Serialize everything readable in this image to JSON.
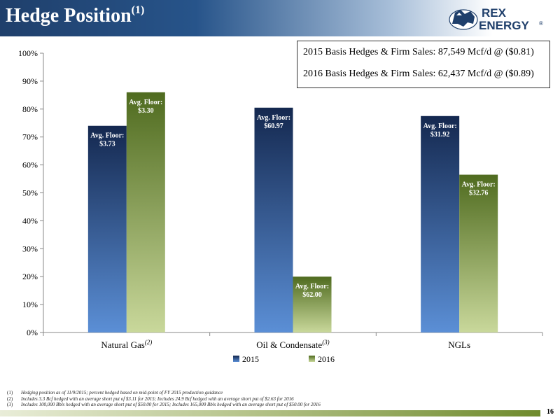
{
  "header": {
    "title": "Hedge Position",
    "title_sup": "(1)"
  },
  "logo": {
    "line1": "REX",
    "line2": "ENERGY",
    "mark": "®",
    "icon": "horse-logo-icon"
  },
  "hedge_box": [
    "2015 Basis Hedges & Firm Sales: 87,549 Mcf/d @ ($0.81)",
    "2016 Basis Hedges & Firm Sales: 62,437 Mcf/d @ ($0.89)"
  ],
  "colors": {
    "s2015_top": "#14284f",
    "s2015_bottom": "#5b8fd6",
    "s2016_top": "#4f6b1f",
    "s2016_bottom": "#c9d89b"
  },
  "chart_data": {
    "type": "bar",
    "categories": [
      "Natural Gas",
      "Oil & Condensate",
      "NGLs"
    ],
    "category_sups": [
      "(2)",
      "(3)",
      ""
    ],
    "series": [
      {
        "name": "2015",
        "values": [
          74,
          80.5,
          77.5
        ],
        "labels": [
          [
            "Avg. Floor:",
            "$3.73"
          ],
          [
            "Avg. Floor:",
            "$60.97"
          ],
          [
            "Avg. Floor:",
            "$31.92"
          ]
        ]
      },
      {
        "name": "2016",
        "values": [
          86,
          20,
          56.5
        ],
        "labels": [
          [
            "Avg. Floor:",
            "$3.30"
          ],
          [
            "Avg. Floor:",
            "$62.00"
          ],
          [
            "Avg. Floor:",
            "$32.76"
          ]
        ]
      }
    ],
    "ylim": [
      0,
      100
    ],
    "yticks": [
      "0%",
      "10%",
      "20%",
      "30%",
      "40%",
      "50%",
      "60%",
      "70%",
      "80%",
      "90%",
      "100%"
    ],
    "legend_position": "bottom",
    "grid": false
  },
  "footnotes": [
    {
      "num": "(1)",
      "text": "Hedging position as of 11/9/2015; percent hedged based on mid-point of FY 2015 production guidance"
    },
    {
      "num": "(2)",
      "text": "Includes 3.3 Bcf hedged with an average short put of $3.11 for 2015; Includes 24.9 Bcf hedged with an average short put of $2.63 for 2016"
    },
    {
      "num": "(3)",
      "text": "Includes 100,000 Bbls hedged with an average short put of $50.00 for 2015; Includes 165,000 Bbls hedged with an average short put of $50.00 for 2016"
    }
  ],
  "page_number": "16"
}
